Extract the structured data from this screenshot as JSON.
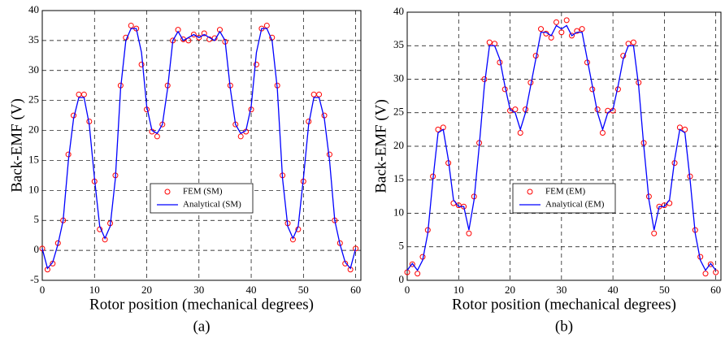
{
  "chart_data": [
    {
      "type": "line",
      "caption": "(a)",
      "xlabel": "Rotor position (mechanical degrees)",
      "ylabel": "Back-EMF (V)",
      "xlim": [
        0,
        61
      ],
      "ylim": [
        -5,
        40
      ],
      "xticks": [
        0,
        10,
        20,
        30,
        40,
        50,
        60
      ],
      "yticks": [
        -5,
        0,
        5,
        10,
        15,
        20,
        25,
        30,
        35,
        40
      ],
      "grid": true,
      "legend": "lower center",
      "x": [
        0,
        1,
        2,
        3,
        4,
        5,
        6,
        7,
        8,
        9,
        10,
        11,
        12,
        13,
        14,
        15,
        16,
        17,
        18,
        19,
        20,
        21,
        22,
        23,
        24,
        25,
        26,
        27,
        28,
        29,
        30,
        31,
        32,
        33,
        34,
        35,
        36,
        37,
        38,
        39,
        40,
        41,
        42,
        43,
        44,
        45,
        46,
        47,
        48,
        49,
        50,
        51,
        52,
        53,
        54,
        55,
        56,
        57,
        58,
        59,
        60
      ],
      "series": [
        {
          "name": "FEM (SM)",
          "color": "#ff0000",
          "style": "markers",
          "values": [
            0.3,
            -3.2,
            -2.2,
            1.2,
            5,
            16,
            22.5,
            26,
            26,
            21.5,
            11.5,
            3.5,
            1.8,
            4.5,
            12.5,
            27.5,
            35.5,
            37.5,
            37,
            31,
            23.5,
            19.8,
            19,
            21,
            27.5,
            35,
            36.8,
            35.2,
            35,
            36,
            35.5,
            36.2,
            35.2,
            35.4,
            36.8,
            34.8,
            27.5,
            21,
            19,
            19.8,
            23.5,
            31,
            37,
            37.5,
            35.5,
            27.5,
            12.5,
            4.5,
            1.8,
            3.5,
            11.5,
            21.5,
            26,
            26,
            22.5,
            16,
            5,
            1.2,
            -2.2,
            -3.2,
            0.3
          ]
        },
        {
          "name": "Analytical (SM)",
          "color": "#0000ff",
          "style": "line",
          "values": [
            0.3,
            -3,
            -2,
            1,
            5,
            15,
            22,
            25.5,
            25.5,
            21,
            12,
            4,
            2,
            4,
            12,
            27,
            35,
            37,
            37,
            33,
            24,
            20,
            19.5,
            21,
            27,
            35,
            36.5,
            35,
            35.5,
            36,
            35.5,
            36,
            35.5,
            35,
            36.5,
            35,
            27,
            21,
            19.5,
            20,
            24,
            33,
            37,
            37,
            35,
            27,
            12,
            4,
            2,
            4,
            12,
            21,
            25.5,
            25.5,
            22,
            15,
            5,
            1,
            -2,
            -3,
            0.3
          ]
        }
      ]
    },
    {
      "type": "line",
      "caption": "(b)",
      "xlabel": "Rotor position (mechanical degrees)",
      "ylabel": "Back-EMF (V)",
      "xlim": [
        0,
        61
      ],
      "ylim": [
        0,
        40
      ],
      "xticks": [
        0,
        10,
        20,
        30,
        40,
        50,
        60
      ],
      "yticks": [
        0,
        5,
        10,
        15,
        20,
        25,
        30,
        35,
        40
      ],
      "grid": true,
      "legend": "lower center",
      "x": [
        0,
        1,
        2,
        3,
        4,
        5,
        6,
        7,
        8,
        9,
        10,
        11,
        12,
        13,
        14,
        15,
        16,
        17,
        18,
        19,
        20,
        21,
        22,
        23,
        24,
        25,
        26,
        27,
        28,
        29,
        30,
        31,
        32,
        33,
        34,
        35,
        36,
        37,
        38,
        39,
        40,
        41,
        42,
        43,
        44,
        45,
        46,
        47,
        48,
        49,
        50,
        51,
        52,
        53,
        54,
        55,
        56,
        57,
        58,
        59,
        60
      ],
      "series": [
        {
          "name": "FEM (EM)",
          "color": "#ff0000",
          "style": "markers",
          "values": [
            1.2,
            2.4,
            1,
            3.5,
            7.5,
            15.5,
            22.5,
            22.8,
            17.5,
            11.5,
            11.2,
            11,
            7,
            12.5,
            20.5,
            30,
            35.5,
            35.3,
            32.5,
            28.5,
            25.3,
            25.5,
            22,
            25.5,
            29.5,
            33.5,
            37.5,
            36.8,
            36.2,
            38.5,
            37,
            38.8,
            36.5,
            37.2,
            37.5,
            32.5,
            28.5,
            25.5,
            22,
            25.3,
            25.3,
            28.5,
            33.5,
            35.3,
            35.5,
            29.5,
            20.5,
            12.5,
            7,
            11,
            11.2,
            11.5,
            17.5,
            22.8,
            22.5,
            15.5,
            7.5,
            3.5,
            1,
            2.4,
            1.2
          ]
        },
        {
          "name": "Analytical (EM)",
          "color": "#0000ff",
          "style": "line",
          "values": [
            1.5,
            2.5,
            1.5,
            3,
            7,
            15,
            22,
            22.5,
            18,
            12,
            11,
            11,
            7.5,
            12,
            20,
            29,
            35,
            35,
            33,
            29,
            25.5,
            25,
            22.5,
            25,
            29,
            33,
            37,
            37,
            36.5,
            38,
            37.5,
            38,
            36.5,
            37,
            37,
            33,
            29,
            25,
            22.5,
            25,
            25.5,
            29,
            33,
            35,
            35,
            29,
            20,
            12,
            7.5,
            11,
            11,
            12,
            18,
            22.5,
            22,
            15,
            7,
            3,
            1.5,
            2.5,
            1.5
          ]
        }
      ]
    }
  ]
}
